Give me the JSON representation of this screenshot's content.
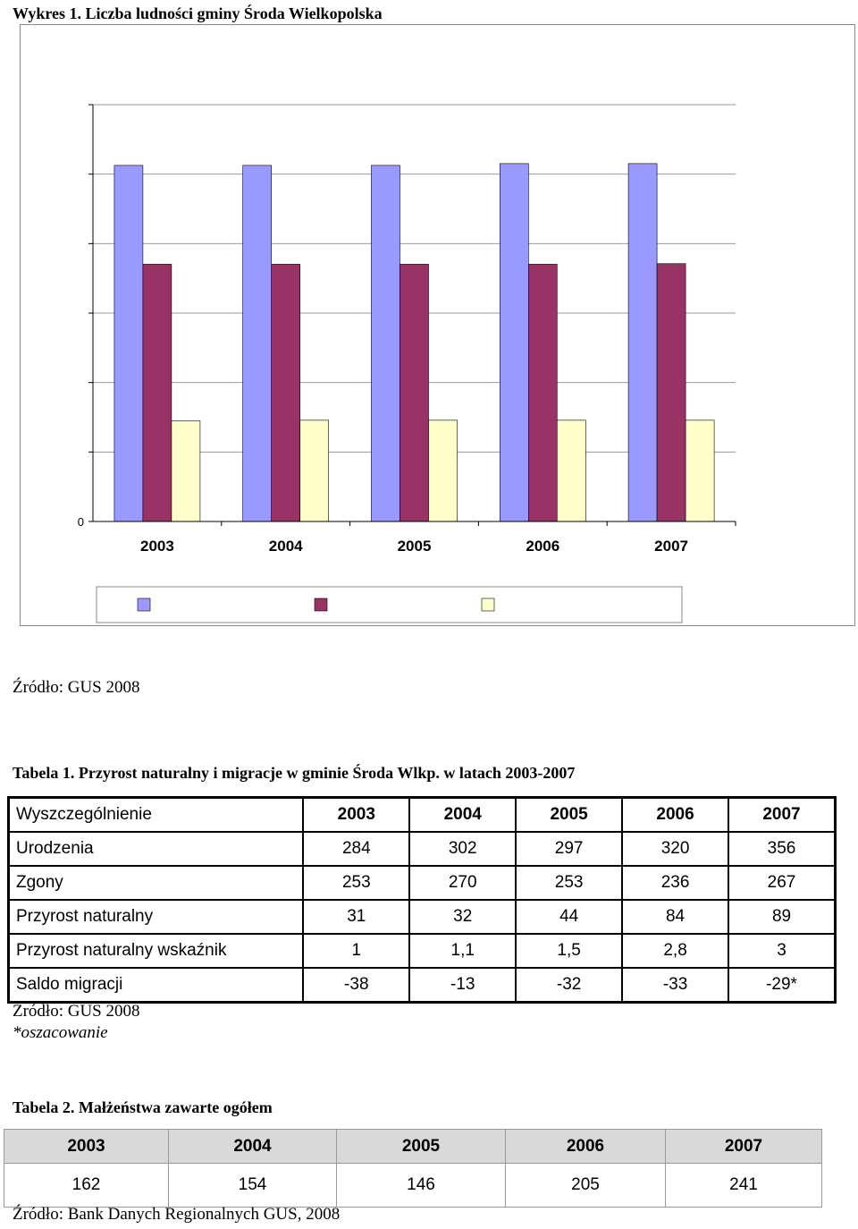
{
  "chart_title": "Wykres 1. Liczba ludności gminy Środa Wielkopolska",
  "chart_data": {
    "type": "bar",
    "categories": [
      "2003",
      "2004",
      "2005",
      "2006",
      "2007"
    ],
    "series": [
      {
        "values": [
          29900,
          29900,
          29900,
          30050,
          30050
        ],
        "color": "#9999ff"
      },
      {
        "values": [
          21600,
          21600,
          21600,
          21600,
          21650
        ],
        "color": "#993366"
      },
      {
        "values": [
          8450,
          8500,
          8500,
          8500,
          8500
        ],
        "color": "#ffffcc"
      }
    ],
    "ylim": [
      0,
      35000
    ],
    "y_tick_count": 7,
    "y_tick_labels": [
      "0"
    ],
    "grid": true,
    "legend": "bottom",
    "title": "",
    "xlabel": "",
    "ylabel": ""
  },
  "source_1": "Źródło: GUS 2008",
  "table1": {
    "title": "Tabela 1. Przyrost naturalny i migracje w gminie Środa Wlkp. w latach 2003-2007",
    "header": [
      "Wyszczególnienie",
      "2003",
      "2004",
      "2005",
      "2006",
      "2007"
    ],
    "rows": [
      [
        "Urodzenia",
        "284",
        "302",
        "297",
        "320",
        "356"
      ],
      [
        "Zgony",
        "253",
        "270",
        "253",
        "236",
        "267"
      ],
      [
        "Przyrost naturalny",
        "31",
        "32",
        "44",
        "84",
        "89"
      ],
      [
        "Przyrost naturalny wskaźnik",
        "1",
        "1,1",
        "1,5",
        "2,8",
        "3"
      ],
      [
        "Saldo migracji",
        "-38",
        "-13",
        "-32",
        "-33",
        "-29*"
      ]
    ],
    "source": "Źródło: GUS 2008",
    "note": "*oszacowanie"
  },
  "table2": {
    "title": "Tabela 2. Małżeństwa zawarte ogółem",
    "header": [
      "2003",
      "2004",
      "2005",
      "2006",
      "2007"
    ],
    "values": [
      "162",
      "154",
      "146",
      "205",
      "241"
    ],
    "source": "Źródło: Bank Danych Regionalnych GUS, 2008"
  }
}
